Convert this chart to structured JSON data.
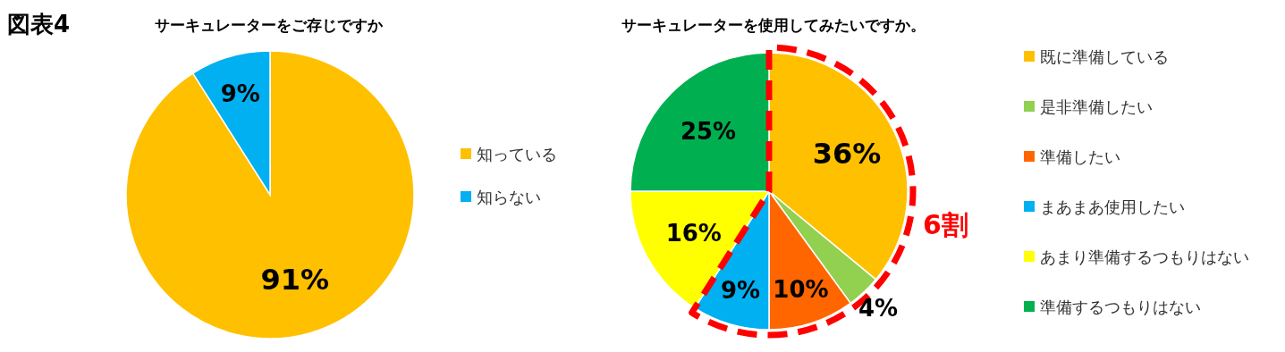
{
  "chart_data": [
    {
      "type": "pie",
      "title": "サーキュレーターをご存じですか",
      "annotations": [
        "図表4"
      ],
      "categories": [
        "知っている",
        "知らない"
      ],
      "values": [
        91,
        9
      ],
      "colors": [
        "#ffc000",
        "#00b0f0"
      ],
      "value_labels": [
        "91%",
        "9%"
      ],
      "legend": "right"
    },
    {
      "type": "pie",
      "title": "サーキュレーターを使用してみたいですか。",
      "annotations": [
        "6割"
      ],
      "categories": [
        "既に準備している",
        "是非準備したい",
        "準備したい",
        "まあまあ使用したい",
        "あまり準備するつもりはない",
        "準備するつもりはない"
      ],
      "values": [
        36,
        4,
        10,
        9,
        16,
        25
      ],
      "colors": [
        "#ffc000",
        "#92d050",
        "#ff6600",
        "#00b0f0",
        "#ffff00",
        "#00b050"
      ],
      "value_labels": [
        "36%",
        "4%",
        "10%",
        "9%",
        "16%",
        "25%"
      ],
      "legend": "right"
    }
  ]
}
